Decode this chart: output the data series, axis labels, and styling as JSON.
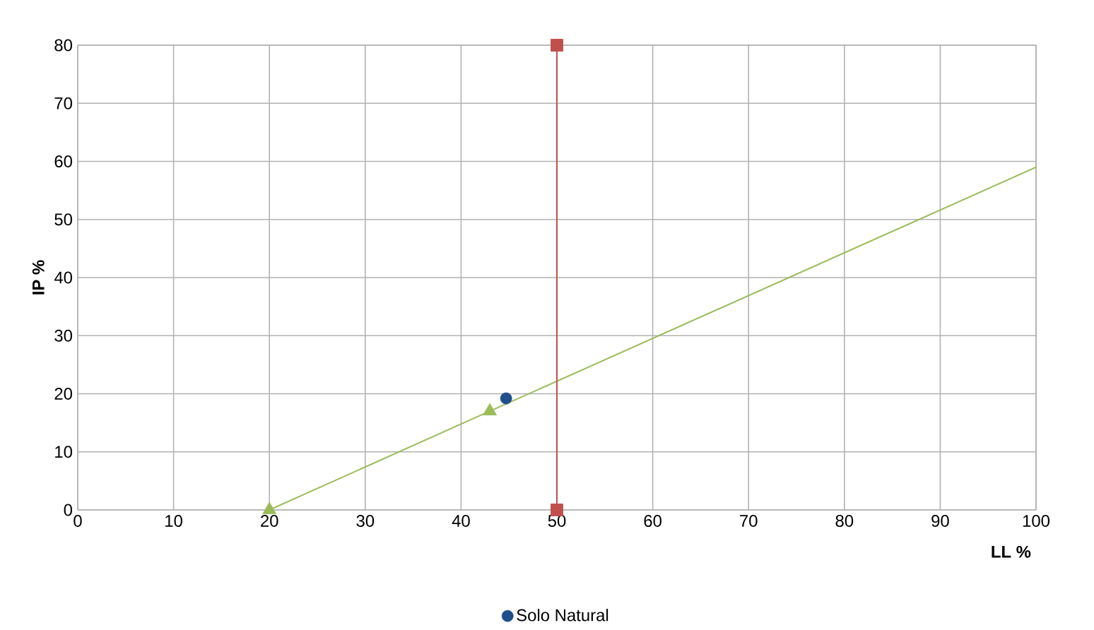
{
  "chart_data": {
    "type": "line",
    "xlabel": "LL %",
    "ylabel": "IP %",
    "xlim": [
      0,
      100
    ],
    "ylim": [
      0,
      80
    ],
    "xticks": [
      0,
      10,
      20,
      30,
      40,
      50,
      60,
      70,
      80,
      90,
      100
    ],
    "yticks": [
      0,
      10,
      20,
      30,
      40,
      50,
      60,
      70,
      80
    ],
    "grid": true,
    "legend": "bottom",
    "series": [
      {
        "color": "#9bbb59",
        "x": [
          20,
          43,
          100
        ],
        "values": [
          0,
          17,
          59
        ],
        "marker": "none"
      },
      {
        "type": "scatter",
        "color": "#9bbb59",
        "x": [
          20,
          43
        ],
        "values": [
          0,
          17
        ],
        "marker": "triangle"
      },
      {
        "color": "#c0504d",
        "x": [
          50,
          50
        ],
        "values": [
          0,
          80
        ],
        "marker": "square"
      },
      {
        "type": "scatter",
        "name": "Solo Natural",
        "color": "#1f4e8c",
        "x": [
          44.7
        ],
        "values": [
          19.2
        ],
        "marker": "circle"
      }
    ]
  }
}
